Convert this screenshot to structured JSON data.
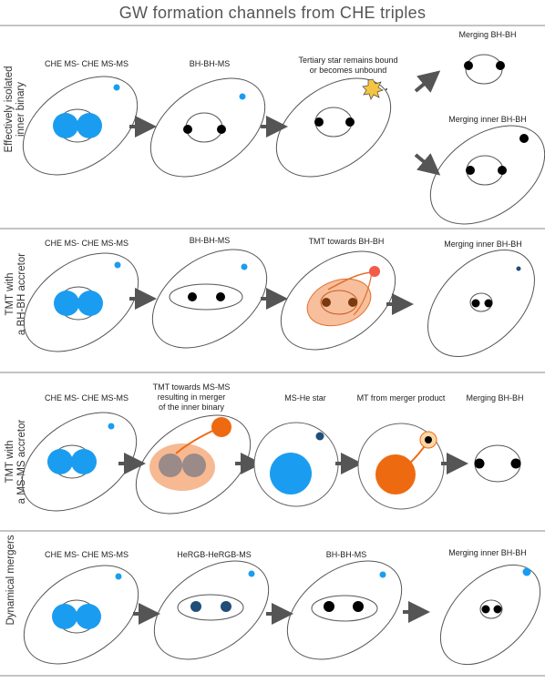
{
  "title": "GW formation channels from CHE triples",
  "rows": [
    {
      "side_label": "Effectively isolated\ninner binary",
      "stages": [
        "CHE MS- CHE MS-MS",
        "BH-BH-MS",
        "Tertiary star remains bound\nor becomes unbound",
        "Merging BH-BH",
        "Merging inner BH-BH"
      ]
    },
    {
      "side_label": "TMT with\na BH-BH accretor",
      "stages": [
        "CHE MS- CHE MS-MS",
        "BH-BH-MS",
        "TMT towards BH-BH",
        "Merging inner BH-BH"
      ]
    },
    {
      "side_label": "TMT with\na MS-MS accretor",
      "stages": [
        "CHE MS- CHE MS-MS",
        "TMT towards MS-MS\nresulting in merger\nof the inner binary",
        "MS-He star",
        "MT from merger product",
        "Merging BH-BH"
      ]
    },
    {
      "side_label": "Dynamical mergers",
      "stages": [
        "CHE MS- CHE MS-MS",
        "HeRGB-HeRGB-MS",
        "BH-BH-MS",
        "Merging inner BH-BH"
      ]
    }
  ],
  "colors": {
    "ms_star": "#1a9df0",
    "black_hole": "#000000",
    "he_star": "#1f4e79",
    "tmt_envelope": "#f08a4a",
    "donor": "#f25a4a",
    "merger_product": "#ee6a10",
    "arrow": "#555555",
    "divider": "#888888"
  },
  "icons": [
    "arrow-right-icon",
    "arrow-up-right-icon",
    "arrow-down-right-icon",
    "explosion-icon"
  ]
}
